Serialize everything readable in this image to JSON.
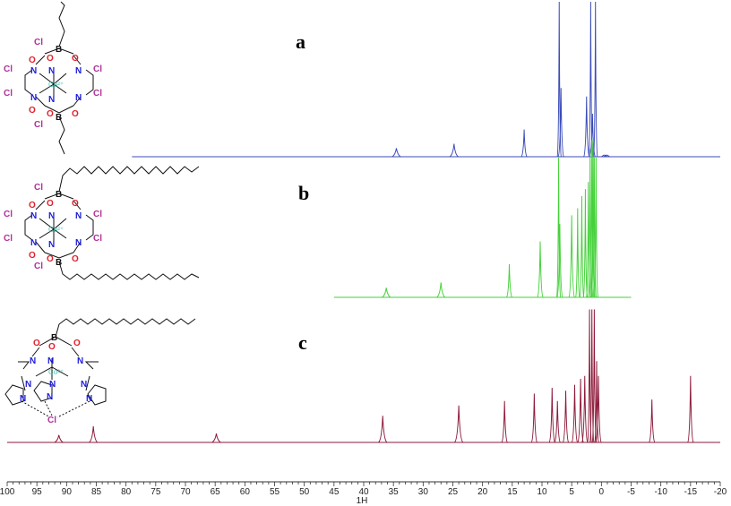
{
  "chart_data": {
    "type": "line",
    "xlabel": "1H",
    "xlim": [
      100,
      -20
    ],
    "x_ticks": [
      100,
      95,
      90,
      85,
      80,
      75,
      70,
      65,
      60,
      55,
      50,
      45,
      40,
      35,
      30,
      25,
      20,
      15,
      10,
      5,
      0,
      -5,
      -10,
      -15,
      -20
    ],
    "grid": false,
    "legend": "none",
    "series": [
      {
        "label": "a",
        "color": "#3b4bb8",
        "x_range": [
          79,
          -20
        ],
        "peaks": [
          {
            "x": 34.5,
            "h": 0.06
          },
          {
            "x": 24.8,
            "h": 0.09
          },
          {
            "x": 13.0,
            "h": 0.19
          },
          {
            "x": 7.1,
            "h": 1.3
          },
          {
            "x": 6.8,
            "h": 0.48
          },
          {
            "x": 2.5,
            "h": 0.42
          },
          {
            "x": 1.8,
            "h": 1.3
          },
          {
            "x": 1.5,
            "h": 0.3
          },
          {
            "x": 1.0,
            "h": 1.3
          },
          {
            "x": -0.5,
            "h": 0.012
          },
          {
            "x": -0.9,
            "h": 0.012
          }
        ]
      },
      {
        "label": "b",
        "color": "#45d13a",
        "x_range": [
          45,
          -5
        ],
        "peaks": [
          {
            "x": 36.2,
            "h": 0.055
          },
          {
            "x": 27.0,
            "h": 0.085
          },
          {
            "x": 15.5,
            "h": 0.19
          },
          {
            "x": 10.3,
            "h": 0.32
          },
          {
            "x": 7.2,
            "h": 0.8
          },
          {
            "x": 7.0,
            "h": 0.42
          },
          {
            "x": 5.0,
            "h": 0.47
          },
          {
            "x": 4.0,
            "h": 0.51
          },
          {
            "x": 3.3,
            "h": 0.58
          },
          {
            "x": 2.7,
            "h": 0.62
          },
          {
            "x": 2.2,
            "h": 0.66
          },
          {
            "x": 1.9,
            "h": 0.85
          },
          {
            "x": 1.6,
            "h": 0.9
          },
          {
            "x": 1.4,
            "h": 0.9
          },
          {
            "x": 1.2,
            "h": 0.8
          },
          {
            "x": 0.9,
            "h": 0.8
          }
        ]
      },
      {
        "label": "c",
        "color": "#8c1a3a",
        "x_range": [
          100,
          -20
        ],
        "peaks": [
          {
            "x": 91.3,
            "h": 0.05
          },
          {
            "x": 85.5,
            "h": 0.11
          },
          {
            "x": 64.8,
            "h": 0.06
          },
          {
            "x": 36.8,
            "h": 0.18
          },
          {
            "x": 24.0,
            "h": 0.25
          },
          {
            "x": 16.3,
            "h": 0.28
          },
          {
            "x": 11.3,
            "h": 0.33
          },
          {
            "x": 8.3,
            "h": 0.37
          },
          {
            "x": 7.4,
            "h": 0.28
          },
          {
            "x": 6.0,
            "h": 0.35
          },
          {
            "x": 4.5,
            "h": 0.39
          },
          {
            "x": 3.5,
            "h": 0.43
          },
          {
            "x": 2.8,
            "h": 0.45
          },
          {
            "x": 2.0,
            "h": 0.9
          },
          {
            "x": 1.6,
            "h": 0.9
          },
          {
            "x": 1.2,
            "h": 0.9
          },
          {
            "x": 0.8,
            "h": 0.55
          },
          {
            "x": 0.5,
            "h": 0.45
          },
          {
            "x": -8.5,
            "h": 0.29
          },
          {
            "x": -15.0,
            "h": 0.45
          }
        ]
      }
    ]
  },
  "structures": {
    "a": {
      "chlorines": [
        "Cl",
        "Cl",
        "Cl",
        "Cl",
        "Cl",
        "Cl"
      ],
      "nitrogen": "N",
      "oxygen": "O",
      "boron": "B",
      "metal": "Co²⁺"
    },
    "b": {
      "chlorines": [
        "Cl",
        "Cl",
        "Cl",
        "Cl",
        "Cl",
        "Cl"
      ],
      "nitrogen": "N",
      "oxygen": "O",
      "boron": "B",
      "metal": "Co²⁺"
    },
    "c": {
      "chloride": "Cl",
      "nitrogen": "N",
      "oxygen": "O",
      "boron": "B",
      "metal": "Co²⁺"
    }
  },
  "colors": {
    "chlorine": "#b0309a",
    "nitrogen": "#1d1ddb",
    "oxygen": "#e0202a",
    "boron": "#111111",
    "metal": "#39c7b3",
    "axis": "#333333"
  }
}
